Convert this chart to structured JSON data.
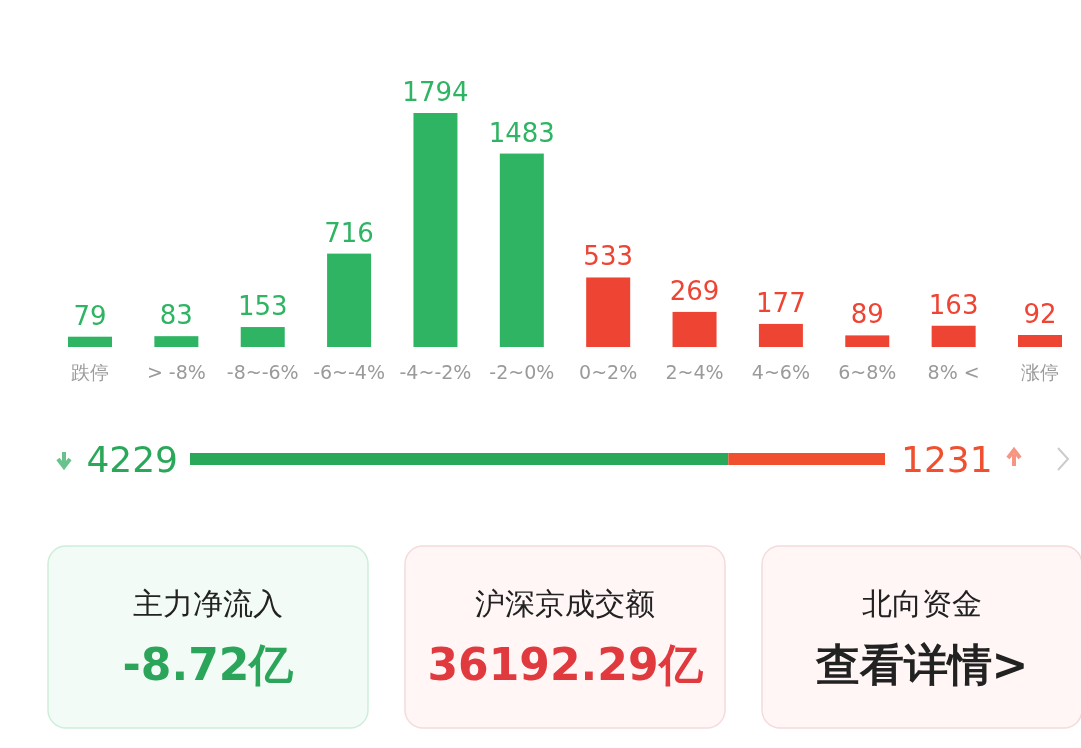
{
  "chart_data": [
    {
      "type": "bar",
      "categories": [
        "跌停",
        "> -8%",
        "-8~-6%",
        "-6~-4%",
        "-4~-2%",
        "-2~0%",
        "0~2%",
        "2~4%",
        "4~6%",
        "6~8%",
        "8% <",
        "涨停"
      ],
      "values": [
        79,
        83,
        153,
        716,
        1794,
        1483,
        533,
        269,
        177,
        89,
        163,
        92
      ],
      "colors": [
        "#2fb463",
        "#2fb463",
        "#2fb463",
        "#2fb463",
        "#2fb463",
        "#2fb463",
        "#ee4433",
        "#ee4433",
        "#ee4433",
        "#ee4433",
        "#ee4433",
        "#ee4433"
      ],
      "data_labels": true
    },
    {
      "type": "bar",
      "orientation": "horizontal",
      "stacked": true,
      "categories": [
        null
      ],
      "series": [
        {
          "color": "#2aa85a",
          "values": [
            4229
          ]
        },
        {
          "color": "#f0502f",
          "values": [
            1231
          ]
        }
      ],
      "data_labels": true
    },
    {
      "type": "other",
      "annotations": [
        "主力净流入",
        "-8.72亿",
        "沪深京成交额",
        "36192.29亿",
        "北向资金",
        "查看详情>"
      ]
    }
  ]
}
